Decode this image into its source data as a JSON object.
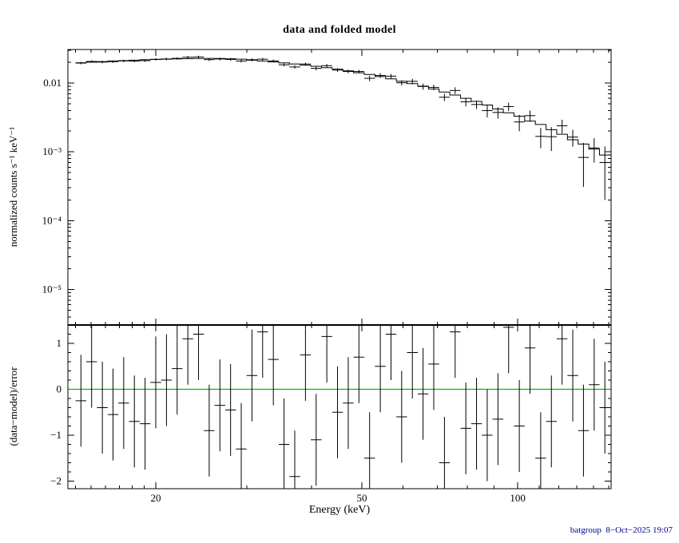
{
  "title": "data and folded model",
  "footer": "batgroup  8−Oct−2025 19:07",
  "colors": {
    "foreground": "#000000",
    "zero_line": "#00bb00",
    "footer_text": "#00008B",
    "background": "#ffffff"
  },
  "chart_data": {
    "type": "line",
    "title": "data and folded model",
    "x_axis": {
      "label": "Energy (keV)",
      "scale": "log",
      "range": [
        13.53,
        151.5
      ],
      "major_ticks": [
        20,
        50,
        100
      ],
      "major_tick_labels": [
        "20",
        "50",
        "100"
      ],
      "minor_ticks": [
        14,
        15,
        16,
        17,
        18,
        19,
        30,
        40,
        60,
        70,
        80,
        90,
        110,
        120,
        130,
        140,
        150
      ]
    },
    "top_panel": {
      "ylabel": "normalized counts s⁻¹ keV⁻¹",
      "scale": "log",
      "range": [
        3.05e-06,
        0.0307
      ],
      "major_ticks": [
        0.01,
        0.001,
        0.0001,
        1e-05
      ],
      "major_tick_labels": [
        "0.01",
        "10⁻³",
        "10⁻⁴",
        "10⁻⁵"
      ]
    },
    "bottom_panel": {
      "ylabel": "(data−model)/error",
      "scale": "linear",
      "range": [
        -2.165,
        1.4
      ],
      "major_ticks": [
        -2,
        -1,
        0,
        1
      ],
      "major_tick_labels": [
        "−2",
        "−1",
        "0",
        "1"
      ],
      "zero_line_value": 0,
      "residual_bar_halfheight": 1
    },
    "bins": {
      "edges_kev": [
        14.0,
        14.68,
        15.4,
        16.15,
        16.93,
        17.76,
        18.62,
        19.53,
        20.48,
        21.48,
        22.52,
        23.62,
        24.77,
        25.97,
        27.24,
        28.56,
        29.95,
        31.41,
        32.94,
        34.55,
        36.23,
        38.0,
        39.85,
        41.79,
        43.82,
        45.96,
        48.2,
        50.54,
        53.01,
        55.59,
        58.29,
        61.13,
        64.11,
        67.23,
        70.51,
        73.94,
        77.54,
        81.32,
        85.28,
        89.43,
        93.79,
        98.36,
        103.15,
        108.17,
        113.44,
        118.96,
        124.76,
        130.83,
        137.21,
        143.89,
        150.9
      ],
      "rate": [
        0.0195,
        0.02058,
        0.02017,
        0.02044,
        0.02095,
        0.0209,
        0.02115,
        0.02213,
        0.02238,
        0.02281,
        0.02372,
        0.02392,
        0.02187,
        0.02234,
        0.02205,
        0.0209,
        0.02182,
        0.0222,
        0.02096,
        0.01842,
        0.0171,
        0.01888,
        0.01635,
        0.01785,
        0.01543,
        0.01473,
        0.0147,
        0.01171,
        0.0129,
        0.0126,
        0.01009,
        0.01058,
        0.00891,
        0.00865,
        0.00622,
        0.00779,
        0.00534,
        0.00488,
        0.00398,
        0.00374,
        0.00455,
        0.00272,
        0.00336,
        0.00168,
        0.00166,
        0.00239,
        0.00164,
        0.00083,
        0.00114,
        0.0007
      ],
      "error": [
        0.00079,
        0.0008,
        0.00082,
        0.00084,
        0.00085,
        0.00086,
        0.00087,
        0.00088,
        0.00089,
        0.0009,
        0.00102,
        0.00102,
        0.00103,
        0.00102,
        0.00101,
        0.001,
        0.00107,
        0.00104,
        0.00101,
        0.00098,
        0.00095,
        0.00091,
        0.00105,
        0.001,
        0.00095,
        0.0009,
        0.00085,
        0.00106,
        0.00099,
        0.00092,
        0.00085,
        0.00098,
        0.0009,
        0.00082,
        0.00074,
        0.00087,
        0.00078,
        0.0007,
        0.00082,
        0.00071,
        0.00063,
        0.00073,
        0.00062,
        0.00055,
        0.00063,
        0.00054,
        0.00045,
        0.00052,
        0.00044,
        0.0005
      ],
      "model": [
        0.0197,
        0.0201,
        0.0205,
        0.0209,
        0.0212,
        0.0215,
        0.0218,
        0.022,
        0.0222,
        0.0224,
        0.0226,
        0.0227,
        0.0228,
        0.0227,
        0.0225,
        0.0222,
        0.0215,
        0.0209,
        0.0203,
        0.0196,
        0.0189,
        0.0182,
        0.0175,
        0.0167,
        0.0159,
        0.015,
        0.0141,
        0.0133,
        0.0124,
        0.0115,
        0.0106,
        0.0098,
        0.009,
        0.0082,
        0.0074,
        0.0067,
        0.006,
        0.0054,
        0.0048,
        0.0042,
        0.0037,
        0.0033,
        0.0028,
        0.0025,
        0.0021,
        0.0018,
        0.0015,
        0.0013,
        0.0011,
        0.0009
      ],
      "residual": [
        -0.25,
        0.6,
        -0.4,
        -0.55,
        -0.3,
        -0.7,
        -0.75,
        0.15,
        0.2,
        0.45,
        1.1,
        1.2,
        -0.9,
        -0.35,
        -0.45,
        -1.3,
        0.3,
        1.25,
        0.65,
        -1.2,
        -1.9,
        0.75,
        -1.1,
        1.15,
        -0.5,
        -0.3,
        0.7,
        -1.5,
        0.5,
        1.2,
        -0.6,
        0.8,
        -0.1,
        0.55,
        -1.6,
        1.25,
        -0.85,
        -0.75,
        -1.0,
        -0.65,
        1.35,
        -0.8,
        0.9,
        -1.5,
        -0.7,
        1.1,
        0.3,
        -0.9,
        0.1,
        -0.4
      ]
    }
  }
}
